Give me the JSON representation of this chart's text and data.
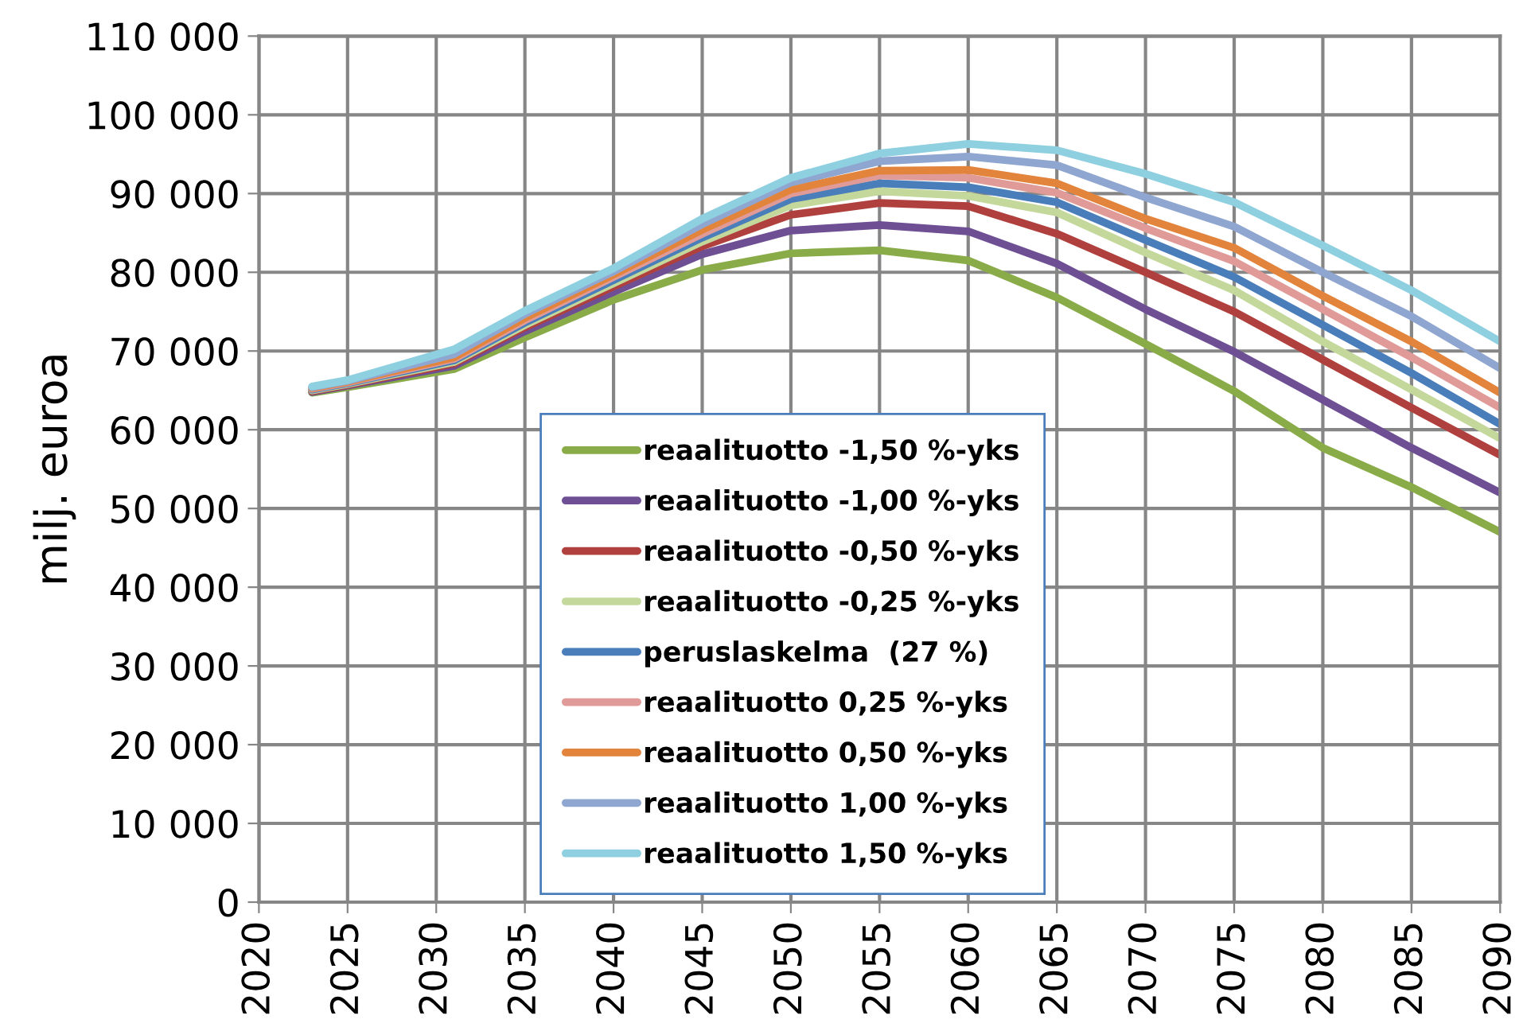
{
  "chart_data": {
    "type": "line",
    "ylabel": "milj. euroa",
    "x": [
      2023,
      2025,
      2031,
      2035,
      2040,
      2045,
      2050,
      2055,
      2060,
      2065,
      2070,
      2075,
      2080,
      2085,
      2090
    ],
    "series": [
      {
        "name": "reaalituotto -1,50 %-yks",
        "color": "#8aac48",
        "values": [
          64700,
          65400,
          67700,
          71700,
          76500,
          80300,
          82400,
          82800,
          81500,
          76800,
          70900,
          64900,
          57700,
          52700,
          47000
        ]
      },
      {
        "name": "reaalituotto -1,00 %-yks",
        "color": "#6e4f94",
        "values": [
          64800,
          65600,
          68100,
          72500,
          77500,
          82300,
          85300,
          86000,
          85200,
          81100,
          75300,
          69900,
          63800,
          57700,
          52000
        ]
      },
      {
        "name": "reaalituotto -0,50 %-yks",
        "color": "#b0403e",
        "values": [
          64900,
          65700,
          68400,
          73000,
          78200,
          83300,
          87300,
          88800,
          88400,
          84900,
          80000,
          75000,
          68900,
          62800,
          56800
        ]
      },
      {
        "name": "reaalituotto -0,25 %-yks",
        "color": "#c3d89a",
        "values": [
          65000,
          65800,
          68600,
          73300,
          78600,
          83900,
          88500,
          90300,
          89700,
          87600,
          82500,
          77700,
          71200,
          65100,
          58900
        ]
      },
      {
        "name": "peruslaskelma  (27 %)",
        "color": "#4a7ebb",
        "values": [
          65100,
          65900,
          68800,
          73600,
          79000,
          84400,
          89300,
          91300,
          90800,
          88900,
          84100,
          79400,
          73300,
          67200,
          60700
        ]
      },
      {
        "name": "reaalituotto 0,25 %-yks",
        "color": "#e09a98",
        "values": [
          65200,
          66000,
          69000,
          73900,
          79400,
          84900,
          90000,
          92300,
          92000,
          90100,
          85600,
          81400,
          75300,
          69200,
          62800
        ]
      },
      {
        "name": "reaalituotto 0,50 %-yks",
        "color": "#e3843c",
        "values": [
          65300,
          66100,
          69200,
          74200,
          79700,
          85400,
          90500,
          92900,
          93000,
          91300,
          86800,
          83100,
          77000,
          71200,
          64700
        ]
      },
      {
        "name": "reaalituotto 1,00 %-yks",
        "color": "#8fa6d0",
        "values": [
          65400,
          66200,
          69600,
          74700,
          80100,
          86100,
          91400,
          94100,
          94700,
          93600,
          89500,
          85800,
          80000,
          74400,
          67800
        ]
      },
      {
        "name": "reaalituotto 1,50 %-yks",
        "color": "#8ecfe0",
        "values": [
          65500,
          66300,
          70200,
          75100,
          80500,
          86800,
          92000,
          95100,
          96300,
          95500,
          92500,
          88900,
          83400,
          77700,
          71200
        ]
      }
    ],
    "xlim": [
      2020,
      2090
    ],
    "xticks": [
      2020,
      2025,
      2030,
      2035,
      2040,
      2045,
      2050,
      2055,
      2060,
      2065,
      2070,
      2075,
      2080,
      2085,
      2090
    ],
    "ylim": [
      0,
      110000
    ],
    "yticks": [
      0,
      {
        "value": 10000,
        "label": "10 000"
      },
      {
        "value": 20000,
        "label": "20 000"
      },
      {
        "value": 30000,
        "label": "30 000"
      },
      {
        "value": 40000,
        "label": "40 000"
      },
      {
        "value": 50000,
        "label": "50 000"
      },
      {
        "value": 60000,
        "label": "60 000"
      },
      {
        "value": 70000,
        "label": "70 000"
      },
      {
        "value": 80000,
        "label": "80 000"
      },
      {
        "value": 90000,
        "label": "90 000"
      },
      {
        "value": 100000,
        "label": "100 000"
      },
      {
        "value": 110000,
        "label": "110 000"
      }
    ],
    "grid": true,
    "legend": "bottom",
    "marker": "none",
    "line_style": "solid"
  }
}
